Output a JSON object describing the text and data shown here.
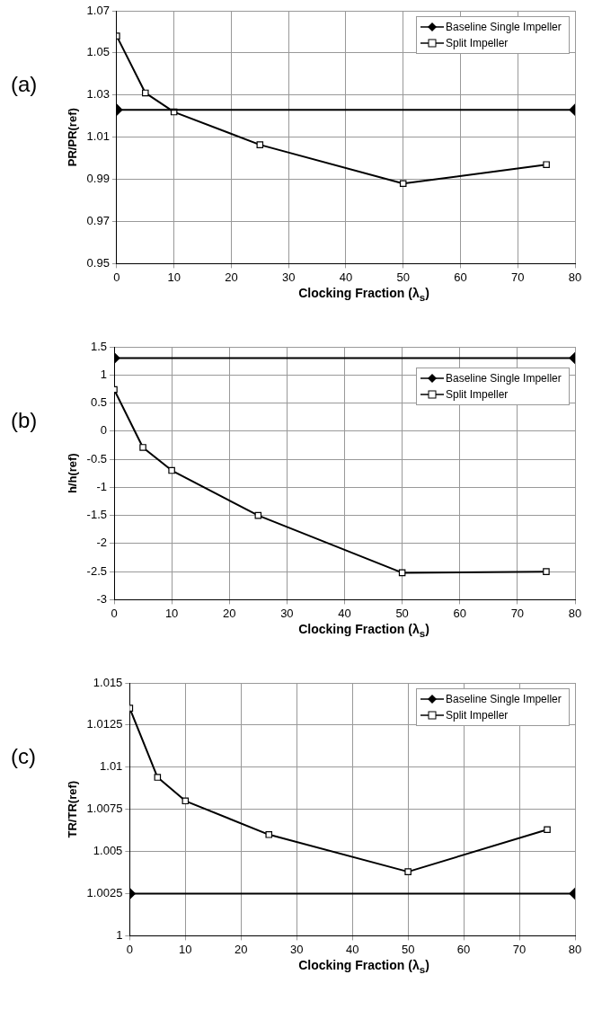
{
  "chart_data": [
    {
      "type": "line",
      "title": "(a)",
      "xlabel": "Clocking Fraction (λ$_{s}$)",
      "ylabel": "PR/PR(ref)",
      "xlim": [
        0,
        80
      ],
      "xticks": [
        0,
        10,
        20,
        30,
        40,
        50,
        60,
        70,
        80
      ],
      "ylim": [
        0.95,
        1.07
      ],
      "yticks": [
        {
          "value": 0.95,
          "label": "0.95"
        },
        {
          "value": 0.97,
          "label": "0.97"
        },
        {
          "value": 0.99,
          "label": "0.99"
        },
        {
          "value": 1.01,
          "label": "1.01"
        },
        {
          "value": 1.03,
          "label": "1.03"
        },
        {
          "value": 1.05,
          "label": "1.05"
        },
        {
          "value": 1.07,
          "label": "1.07"
        }
      ],
      "grid": true,
      "legend": "top right",
      "series": [
        {
          "name": "Baseline Single Impeller",
          "color": "#000000",
          "marker": "diamond",
          "x": [
            0,
            80
          ],
          "values": [
            1.023,
            1.023
          ]
        },
        {
          "name": "Split Impeller",
          "color": "#000000",
          "marker": "square",
          "x": [
            0,
            5,
            10,
            25,
            50,
            75
          ],
          "values": [
            1.058,
            1.031,
            1.022,
            1.0064,
            0.988,
            0.997
          ]
        }
      ]
    },
    {
      "type": "line",
      "title": "(b)",
      "xlabel": "Clocking Fraction (λ$_{s}$)",
      "ylabel": "h/h(ref)",
      "xlim": [
        0,
        80
      ],
      "xticks": [
        0,
        10,
        20,
        30,
        40,
        50,
        60,
        70,
        80
      ],
      "ylim": [
        -3,
        1.5
      ],
      "yticks": [
        -3,
        -2.5,
        -2,
        -1.5,
        -1,
        -0.5,
        0,
        0.5,
        1,
        1.5
      ],
      "grid": true,
      "legend": "top right",
      "series": [
        {
          "name": "Baseline Single Impeller",
          "color": "#000000",
          "marker": "diamond",
          "x": [
            0,
            80
          ],
          "values": [
            1.3,
            1.3
          ]
        },
        {
          "name": "Split Impeller",
          "color": "#000000",
          "marker": "square",
          "x": [
            0,
            5,
            10,
            25,
            50,
            75
          ],
          "values": [
            0.74,
            -0.29,
            -0.7,
            -1.5,
            -2.52,
            -2.5
          ]
        }
      ]
    },
    {
      "type": "line",
      "title": "(c)",
      "xlabel": "Clocking Fraction (λ$_{s}$)",
      "ylabel": "TR/TR(ref)",
      "xlim": [
        0,
        80
      ],
      "xticks": [
        0,
        10,
        20,
        30,
        40,
        50,
        60,
        70,
        80
      ],
      "ylim": [
        1,
        1.015
      ],
      "yticks": [
        1,
        1.0025,
        1.005,
        1.0075,
        1.01,
        1.0125,
        1.015
      ],
      "grid": true,
      "legend": "top right",
      "series": [
        {
          "name": "Baseline Single Impeller",
          "color": "#000000",
          "marker": "diamond",
          "x": [
            0,
            80
          ],
          "values": [
            1.0025,
            1.0025
          ]
        },
        {
          "name": "Split Impeller",
          "color": "#000000",
          "marker": "square",
          "x": [
            0,
            5,
            10,
            25,
            50,
            75
          ],
          "values": [
            1.0135,
            1.0094,
            1.008,
            1.006,
            1.0038,
            1.0063
          ]
        }
      ]
    }
  ]
}
